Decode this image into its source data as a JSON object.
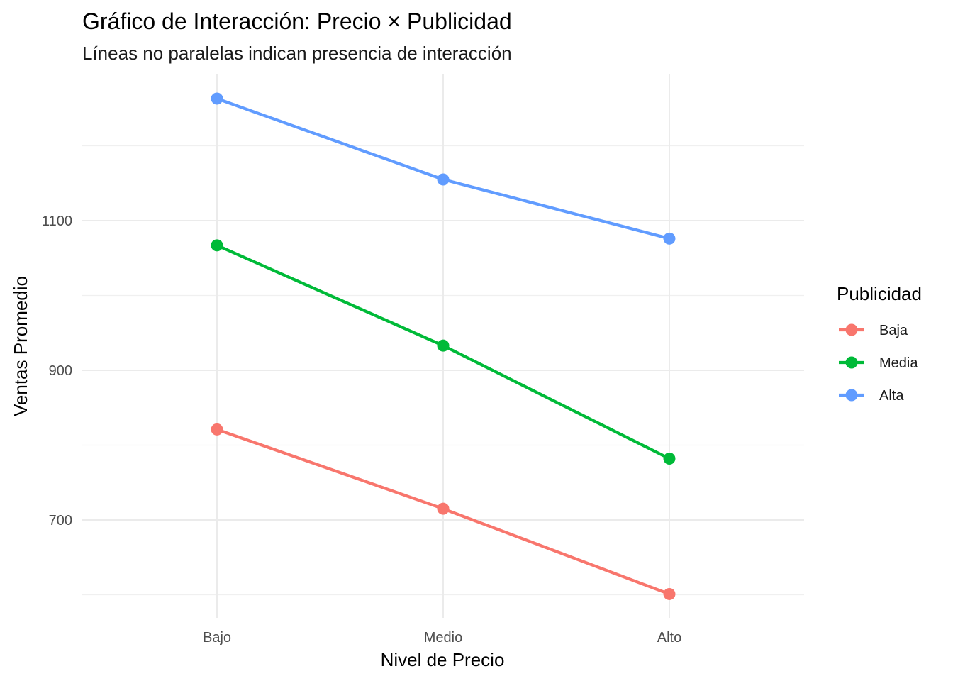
{
  "chart_data": {
    "type": "line",
    "title": "Gráfico de Interacción: Precio × Publicidad",
    "subtitle": "Líneas no paralelas indican presencia de interacción",
    "xlabel": "Nivel de Precio",
    "ylabel": "Ventas Promedio",
    "categories": [
      "Bajo",
      "Medio",
      "Alto"
    ],
    "yticks": [
      700,
      900,
      1100
    ],
    "ylim": [
      580,
      1280
    ],
    "grid": true,
    "legend": {
      "title": "Publicidad",
      "position": "right"
    },
    "series": [
      {
        "name": "Baja",
        "color": "#F8766D",
        "values": [
          821,
          715,
          601
        ]
      },
      {
        "name": "Media",
        "color": "#00BA38",
        "values": [
          1067,
          933,
          782
        ]
      },
      {
        "name": "Alta",
        "color": "#619CFF",
        "values": [
          1263,
          1155,
          1076
        ]
      }
    ]
  }
}
